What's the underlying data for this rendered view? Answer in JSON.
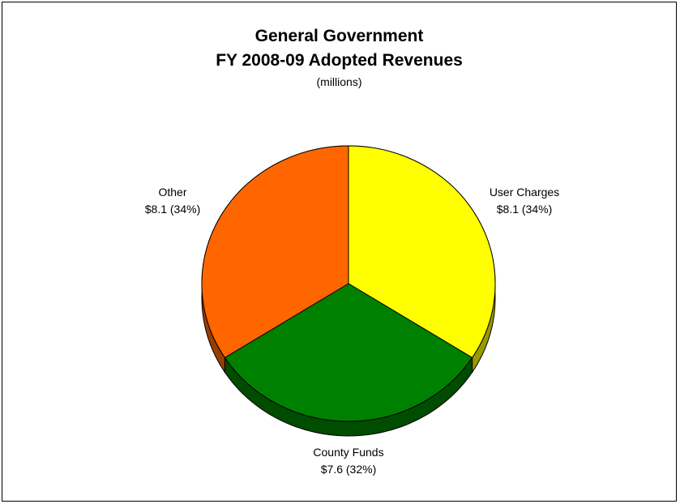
{
  "chart_data": {
    "type": "pie",
    "title": "General Government",
    "subtitle": "FY 2008-09 Adopted Revenues",
    "unit_note": "(millions)",
    "slices": [
      {
        "label": "User Charges",
        "value": 8.1,
        "value_text": "$8.1 (34%)",
        "percent": 34,
        "color": "#FFFF00",
        "side_color": "#999900"
      },
      {
        "label": "County Funds",
        "value": 7.6,
        "value_text": "$7.6 (32%)",
        "percent": 32,
        "color": "#008000",
        "side_color": "#004C00"
      },
      {
        "label": "Other",
        "value": 8.1,
        "value_text": "$8.1 (34%)",
        "percent": 34,
        "color": "#FF6600",
        "side_color": "#993D00"
      }
    ],
    "legend": "none",
    "style": "3d-tilted"
  }
}
